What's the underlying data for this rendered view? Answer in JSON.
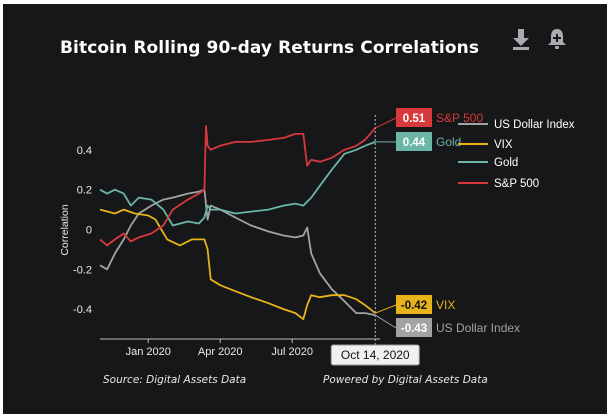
{
  "title": "Bitcoin Rolling 90-day Returns Correlations",
  "footer": {
    "source": "Source: Digital Assets Data",
    "powered_by": "Powered by Digital Assets Data"
  },
  "toolbar": {
    "download_icon": "download-icon",
    "alert_icon": "bell-plus-icon"
  },
  "crosshair_label": "Oct 14, 2020",
  "chart_data": {
    "type": "line",
    "title": "Bitcoin Rolling 90-day Returns Correlations",
    "xlabel": "",
    "ylabel": "Correlation",
    "x_ticks": [
      "Jan 2020",
      "Apr 2020",
      "Jul 2020"
    ],
    "y_ticks": [
      -0.4,
      -0.2,
      0,
      0.2,
      0.4
    ],
    "ylim": [
      -0.55,
      0.6
    ],
    "xlim": [
      "2019-11-01",
      "2020-10-20"
    ],
    "grid": false,
    "legend_position": "right",
    "series": [
      {
        "name": "US Dollar Index",
        "color": "#a3a3a3",
        "end_label": "-0.43",
        "end_name": "US Dollar Index",
        "points": [
          [
            "2019-11-01",
            -0.18
          ],
          [
            "2019-11-10",
            -0.2
          ],
          [
            "2019-11-20",
            -0.12
          ],
          [
            "2019-12-01",
            -0.05
          ],
          [
            "2019-12-10",
            0.02
          ],
          [
            "2019-12-20",
            0.08
          ],
          [
            "2020-01-05",
            0.12
          ],
          [
            "2020-01-20",
            0.15
          ],
          [
            "2020-02-01",
            0.16
          ],
          [
            "2020-02-20",
            0.18
          ],
          [
            "2020-03-05",
            0.19
          ],
          [
            "2020-03-12",
            0.2
          ],
          [
            "2020-03-16",
            0.05
          ],
          [
            "2020-03-20",
            0.12
          ],
          [
            "2020-04-01",
            0.1
          ],
          [
            "2020-04-20",
            0.06
          ],
          [
            "2020-05-10",
            0.02
          ],
          [
            "2020-06-01",
            -0.01
          ],
          [
            "2020-06-20",
            -0.03
          ],
          [
            "2020-07-05",
            -0.04
          ],
          [
            "2020-07-15",
            -0.03
          ],
          [
            "2020-07-20",
            0.01
          ],
          [
            "2020-07-25",
            -0.12
          ],
          [
            "2020-08-05",
            -0.22
          ],
          [
            "2020-08-20",
            -0.3
          ],
          [
            "2020-09-05",
            -0.36
          ],
          [
            "2020-09-20",
            -0.42
          ],
          [
            "2020-10-01",
            -0.42
          ],
          [
            "2020-10-14",
            -0.43
          ]
        ]
      },
      {
        "name": "VIX",
        "color": "#e8b21a",
        "end_label": "-0.42",
        "end_name": "VIX",
        "points": [
          [
            "2019-11-01",
            0.1
          ],
          [
            "2019-11-20",
            0.08
          ],
          [
            "2019-12-01",
            0.1
          ],
          [
            "2019-12-15",
            0.08
          ],
          [
            "2020-01-01",
            0.07
          ],
          [
            "2020-01-10",
            0.05
          ],
          [
            "2020-01-25",
            -0.05
          ],
          [
            "2020-02-10",
            -0.08
          ],
          [
            "2020-02-25",
            -0.05
          ],
          [
            "2020-03-05",
            -0.05
          ],
          [
            "2020-03-12",
            -0.05
          ],
          [
            "2020-03-16",
            -0.1
          ],
          [
            "2020-03-20",
            -0.25
          ],
          [
            "2020-04-01",
            -0.28
          ],
          [
            "2020-04-20",
            -0.31
          ],
          [
            "2020-05-10",
            -0.34
          ],
          [
            "2020-06-01",
            -0.37
          ],
          [
            "2020-06-20",
            -0.4
          ],
          [
            "2020-07-05",
            -0.42
          ],
          [
            "2020-07-15",
            -0.45
          ],
          [
            "2020-07-20",
            -0.38
          ],
          [
            "2020-07-25",
            -0.33
          ],
          [
            "2020-08-05",
            -0.34
          ],
          [
            "2020-08-20",
            -0.33
          ],
          [
            "2020-09-05",
            -0.33
          ],
          [
            "2020-09-20",
            -0.35
          ],
          [
            "2020-10-01",
            -0.38
          ],
          [
            "2020-10-14",
            -0.42
          ]
        ]
      },
      {
        "name": "Gold",
        "color": "#6bb6a6",
        "end_label": "0.44",
        "end_name": "Gold",
        "points": [
          [
            "2019-11-01",
            0.2
          ],
          [
            "2019-11-10",
            0.18
          ],
          [
            "2019-11-20",
            0.2
          ],
          [
            "2019-12-01",
            0.18
          ],
          [
            "2019-12-10",
            0.12
          ],
          [
            "2019-12-20",
            0.16
          ],
          [
            "2020-01-05",
            0.15
          ],
          [
            "2020-01-20",
            0.1
          ],
          [
            "2020-02-01",
            0.02
          ],
          [
            "2020-02-20",
            0.04
          ],
          [
            "2020-03-05",
            0.03
          ],
          [
            "2020-03-12",
            0.06
          ],
          [
            "2020-03-16",
            0.12
          ],
          [
            "2020-03-20",
            0.1
          ],
          [
            "2020-04-01",
            0.1
          ],
          [
            "2020-04-20",
            0.08
          ],
          [
            "2020-05-10",
            0.09
          ],
          [
            "2020-06-01",
            0.1
          ],
          [
            "2020-06-20",
            0.12
          ],
          [
            "2020-07-05",
            0.13
          ],
          [
            "2020-07-15",
            0.12
          ],
          [
            "2020-07-25",
            0.16
          ],
          [
            "2020-08-05",
            0.22
          ],
          [
            "2020-08-20",
            0.3
          ],
          [
            "2020-09-05",
            0.38
          ],
          [
            "2020-09-20",
            0.4
          ],
          [
            "2020-10-01",
            0.42
          ],
          [
            "2020-10-14",
            0.44
          ]
        ]
      },
      {
        "name": "S&P 500",
        "color": "#d8393c",
        "end_label": "0.51",
        "end_name": "S&P 500",
        "points": [
          [
            "2019-11-01",
            -0.05
          ],
          [
            "2019-11-10",
            -0.08
          ],
          [
            "2019-11-20",
            -0.05
          ],
          [
            "2019-12-01",
            -0.02
          ],
          [
            "2019-12-10",
            -0.06
          ],
          [
            "2019-12-20",
            -0.04
          ],
          [
            "2020-01-05",
            -0.02
          ],
          [
            "2020-01-20",
            0.02
          ],
          [
            "2020-02-01",
            0.1
          ],
          [
            "2020-02-20",
            0.15
          ],
          [
            "2020-03-05",
            0.18
          ],
          [
            "2020-03-12",
            0.2
          ],
          [
            "2020-03-14",
            0.52
          ],
          [
            "2020-03-16",
            0.42
          ],
          [
            "2020-03-20",
            0.4
          ],
          [
            "2020-04-01",
            0.42
          ],
          [
            "2020-04-20",
            0.44
          ],
          [
            "2020-05-10",
            0.44
          ],
          [
            "2020-06-01",
            0.45
          ],
          [
            "2020-06-20",
            0.46
          ],
          [
            "2020-07-05",
            0.48
          ],
          [
            "2020-07-15",
            0.48
          ],
          [
            "2020-07-20",
            0.32
          ],
          [
            "2020-07-25",
            0.35
          ],
          [
            "2020-08-05",
            0.34
          ],
          [
            "2020-08-20",
            0.36
          ],
          [
            "2020-09-05",
            0.4
          ],
          [
            "2020-09-20",
            0.42
          ],
          [
            "2020-10-01",
            0.45
          ],
          [
            "2020-10-14",
            0.51
          ]
        ]
      }
    ]
  }
}
